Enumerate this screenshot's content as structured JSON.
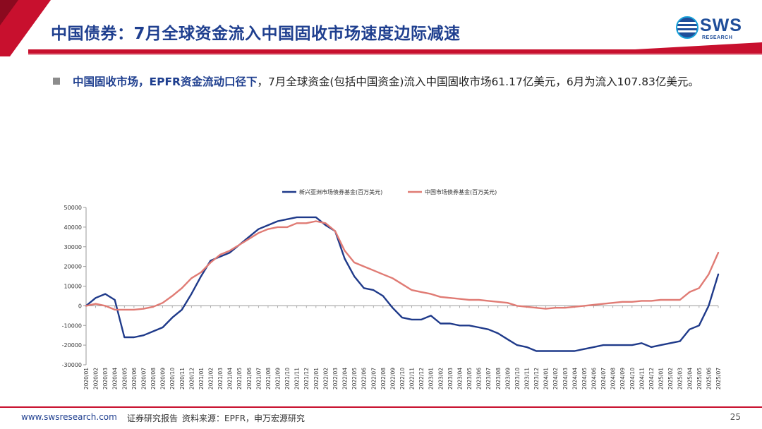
{
  "header": {
    "title": "中国债券：7月全球资金流入中国固收市场速度边际减速",
    "logo_text": "SWS",
    "logo_sub": "RESEARCH"
  },
  "bullet": {
    "bold": "中国固收市场，EPFR资金流动口径下",
    "text": "，7月全球资金(包括中国资金)流入中国固收市场61.17亿美元，6月为流入107.83亿美元。"
  },
  "footer": {
    "url": "www.swsresearch.com",
    "report": "证券研究报告",
    "source": "资料来源：EPFR，申万宏源研究",
    "page": "25"
  },
  "chart_data": {
    "type": "line",
    "ylim": [
      -30000,
      50000
    ],
    "yticks": [
      50000,
      40000,
      30000,
      20000,
      10000,
      0,
      -10000,
      -20000,
      -30000
    ],
    "legend_position": "top",
    "categories": [
      "2020/01",
      "2020/02",
      "2020/03",
      "2020/04",
      "2020/05",
      "2020/06",
      "2020/07",
      "2020/08",
      "2020/09",
      "2020/10",
      "2020/11",
      "2020/12",
      "2021/01",
      "2021/02",
      "2021/03",
      "2021/04",
      "2021/05",
      "2021/06",
      "2021/07",
      "2021/08",
      "2021/09",
      "2021/10",
      "2021/11",
      "2021/12",
      "2022/01",
      "2022/02",
      "2022/03",
      "2022/04",
      "2022/05",
      "2022/06",
      "2022/07",
      "2022/08",
      "2022/09",
      "2022/10",
      "2022/11",
      "2022/12",
      "2023/01",
      "2023/02",
      "2023/03",
      "2023/04",
      "2023/05",
      "2023/06",
      "2023/07",
      "2023/08",
      "2023/09",
      "2023/10",
      "2023/11",
      "2023/12",
      "2024/01",
      "2024/02",
      "2024/03",
      "2024/04",
      "2024/05",
      "2024/06",
      "2024/07",
      "2024/08",
      "2024/09",
      "2024/10",
      "2024/11",
      "2024/12",
      "2025/01",
      "2025/02",
      "2025/03",
      "2025/04",
      "2025/05",
      "2025/06",
      "2025/07"
    ],
    "series": [
      {
        "name": "新兴亚洲市场债券基金(百万美元)",
        "color": "#1f3a8a",
        "values": [
          0,
          4000,
          6000,
          3000,
          -16000,
          -16000,
          -15000,
          -13000,
          -11000,
          -6000,
          -2000,
          6000,
          15000,
          23000,
          25000,
          27000,
          31000,
          35000,
          39000,
          41000,
          43000,
          44000,
          45000,
          45000,
          45000,
          41000,
          38000,
          24000,
          15000,
          9000,
          8000,
          5000,
          -1000,
          -6000,
          -7000,
          -7000,
          -5000,
          -9000,
          -9000,
          -10000,
          -10000,
          -11000,
          -12000,
          -14000,
          -17000,
          -20000,
          -21000,
          -23000,
          -23000,
          -23000,
          -23000,
          -23000,
          -22000,
          -21000,
          -20000,
          -20000,
          -20000,
          -20000,
          -19000,
          -21000,
          -20000,
          -19000,
          -18000,
          -12000,
          -10000,
          0,
          16000
        ]
      },
      {
        "name": "中国市场债券基金(百万美元)",
        "color": "#e07b74",
        "values": [
          0,
          1000,
          0,
          -2000,
          -2000,
          -2000,
          -1500,
          -500,
          1500,
          5000,
          9000,
          14000,
          17000,
          22000,
          26000,
          28000,
          31000,
          34000,
          37000,
          39000,
          40000,
          40000,
          42000,
          42000,
          43000,
          42000,
          38000,
          28000,
          22000,
          20000,
          18000,
          16000,
          14000,
          11000,
          8000,
          7000,
          6000,
          4500,
          4000,
          3500,
          3000,
          3000,
          2500,
          2000,
          1500,
          0,
          -500,
          -1000,
          -1500,
          -1000,
          -1000,
          -500,
          0,
          500,
          1000,
          1500,
          2000,
          2000,
          2500,
          2500,
          3000,
          3000,
          3000,
          7000,
          9000,
          16000,
          27000
        ]
      }
    ]
  }
}
